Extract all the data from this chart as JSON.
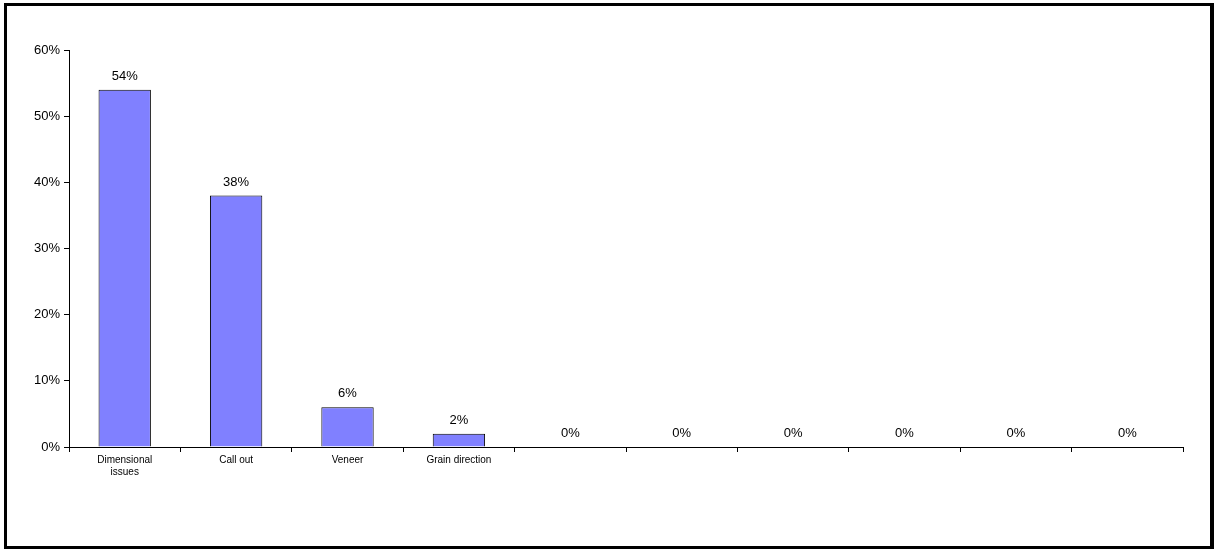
{
  "chart_data": {
    "type": "bar",
    "categories": [
      "Dimensional issues",
      "Call out",
      "Veneer",
      "Grain direction",
      null,
      null,
      null,
      null,
      null,
      null
    ],
    "values": [
      54,
      38,
      6,
      2,
      0,
      0,
      0,
      0,
      0,
      0
    ],
    "value_labels": [
      "54%",
      "38%",
      "6%",
      "2%",
      "0%",
      "0%",
      "0%",
      "0%",
      "0%",
      "0%"
    ],
    "color": "#8080ff",
    "ylim": [
      0,
      60
    ],
    "yticks": [
      {
        "value": 0,
        "label": "0%"
      },
      {
        "value": 10,
        "label": "10%"
      },
      {
        "value": 20,
        "label": "20%"
      },
      {
        "value": 30,
        "label": "30%"
      },
      {
        "value": 40,
        "label": "40%"
      },
      {
        "value": 50,
        "label": "50%"
      },
      {
        "value": 60,
        "label": "60%"
      }
    ],
    "grid": false,
    "legend": false
  }
}
